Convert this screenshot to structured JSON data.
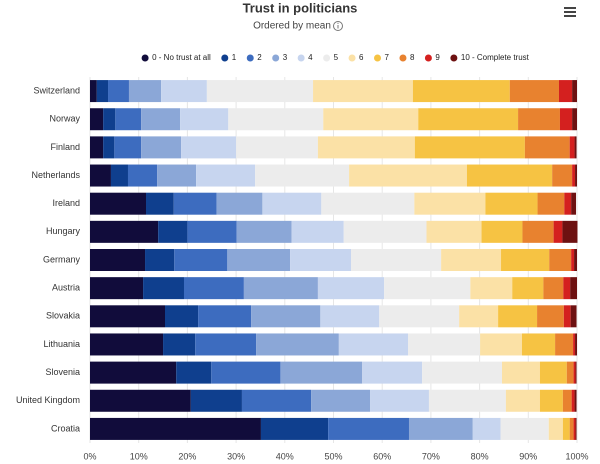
{
  "chart_data": {
    "type": "stacked-bar-horizontal",
    "title": "Trust in politicians",
    "subtitle": "Ordered by mean",
    "categories": [
      "Switzerland",
      "Norway",
      "Finland",
      "Netherlands",
      "Ireland",
      "Hungary",
      "Germany",
      "Austria",
      "Slovakia",
      "Lithuania",
      "Slovenia",
      "United Kingdom",
      "Croatia"
    ],
    "series": [
      {
        "name": "0 - No trust at all",
        "color": "#110c3b",
        "values": [
          1.4,
          2.7,
          2.7,
          4.3,
          11.5,
          14.0,
          11.3,
          10.9,
          15.4,
          15.0,
          17.7,
          20.7,
          35.1
        ]
      },
      {
        "name": "1",
        "color": "#0f3f8e",
        "values": [
          2.3,
          2.5,
          2.3,
          3.5,
          5.7,
          6.0,
          6.0,
          8.4,
          6.8,
          6.6,
          7.2,
          10.5,
          13.8
        ]
      },
      {
        "name": "2",
        "color": "#3d6cbf",
        "values": [
          4.3,
          5.3,
          5.5,
          6.0,
          8.8,
          10.1,
          10.9,
          12.3,
          10.9,
          12.5,
          14.2,
          14.2,
          16.6
        ]
      },
      {
        "name": "3",
        "color": "#8ba7d7",
        "values": [
          6.6,
          8.0,
          8.2,
          8.0,
          9.4,
          11.3,
          12.9,
          15.2,
          14.2,
          17.0,
          16.8,
          12.1,
          13.1
        ]
      },
      {
        "name": "4",
        "color": "#c7d5ef",
        "values": [
          9.4,
          9.9,
          11.3,
          12.1,
          12.1,
          10.7,
          12.5,
          13.6,
          12.1,
          14.2,
          12.3,
          12.1,
          5.7
        ]
      },
      {
        "name": "5",
        "color": "#ececec",
        "values": [
          21.8,
          19.5,
          16.8,
          19.3,
          19.1,
          17.0,
          18.5,
          17.7,
          16.4,
          14.8,
          16.4,
          15.8,
          9.9
        ]
      },
      {
        "name": "6",
        "color": "#fbe1a6",
        "values": [
          20.5,
          19.5,
          19.9,
          24.2,
          14.6,
          11.3,
          12.3,
          8.6,
          8.0,
          8.6,
          7.8,
          7.0,
          2.9
        ]
      },
      {
        "name": "7",
        "color": "#f6c343",
        "values": [
          19.9,
          20.5,
          22.6,
          17.5,
          10.7,
          8.4,
          9.9,
          6.4,
          8.0,
          6.8,
          5.5,
          4.7,
          1.4
        ]
      },
      {
        "name": "8",
        "color": "#e8822f",
        "values": [
          10.1,
          8.6,
          9.2,
          4.1,
          5.5,
          6.4,
          4.5,
          4.1,
          5.5,
          3.7,
          1.4,
          1.8,
          0.8
        ]
      },
      {
        "name": "9",
        "color": "#d4201f",
        "values": [
          2.7,
          2.5,
          1.0,
          0.6,
          1.4,
          1.8,
          0.6,
          1.4,
          1.4,
          0.4,
          0.4,
          0.6,
          0.4
        ]
      },
      {
        "name": "10 - Complete trust",
        "color": "#6d1111",
        "values": [
          1.0,
          1.0,
          0.4,
          0.4,
          1.0,
          3.1,
          0.6,
          1.4,
          1.2,
          0.4,
          0.2,
          0.4,
          0.2
        ]
      }
    ],
    "xlim": [
      0,
      100
    ],
    "xticks": [
      {
        "value": 0,
        "label": "0%"
      },
      {
        "value": 10,
        "label": "10%"
      },
      {
        "value": 20,
        "label": "20%"
      },
      {
        "value": 30,
        "label": "30%"
      },
      {
        "value": 40,
        "label": "40%"
      },
      {
        "value": 50,
        "label": "50%"
      },
      {
        "value": 60,
        "label": "60%"
      },
      {
        "value": 70,
        "label": "70%"
      },
      {
        "value": 80,
        "label": "80%"
      },
      {
        "value": 90,
        "label": "90%"
      },
      {
        "value": 100,
        "label": "100%"
      }
    ],
    "grid": true
  }
}
